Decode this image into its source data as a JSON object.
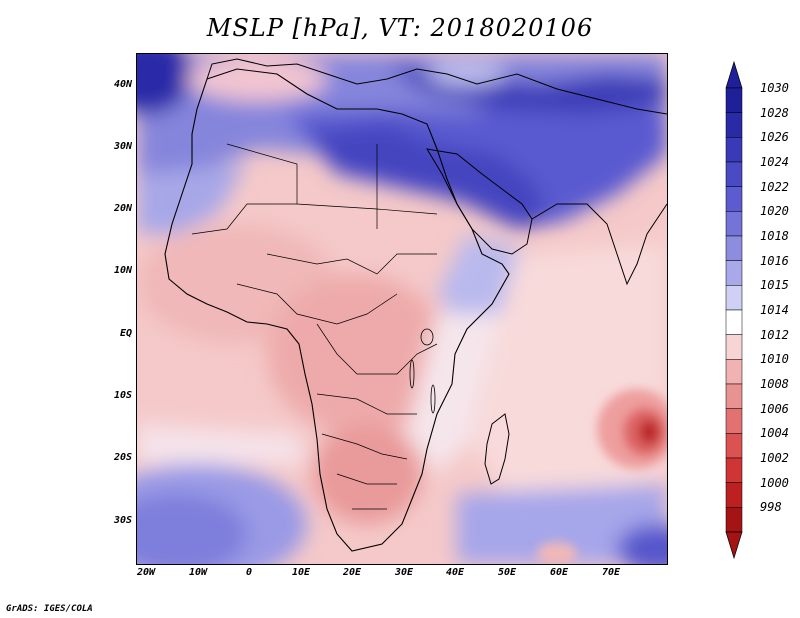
{
  "title": "MSLP [hPa], VT: 2018020106",
  "credit": "GrADS: IGES/COLA",
  "lat_labels": [
    "40N",
    "30N",
    "20N",
    "10N",
    "EQ",
    "10S",
    "20S",
    "30S"
  ],
  "lon_labels": [
    "20W",
    "10W",
    "0",
    "10E",
    "20E",
    "30E",
    "40E",
    "50E",
    "60E",
    "70E"
  ],
  "colorbar": {
    "levels": [
      "1030",
      "1028",
      "1026",
      "1024",
      "1022",
      "1020",
      "1018",
      "1016",
      "1015",
      "1014",
      "1012",
      "1010",
      "1008",
      "1006",
      "1004",
      "1002",
      "1000",
      "998"
    ],
    "colors": [
      "#1f1f9a",
      "#2a2aa8",
      "#3a3ab8",
      "#4a4ac4",
      "#5c5cd0",
      "#7373d8",
      "#8d8de0",
      "#a9a9ea",
      "#d0d0f5",
      "#ffffff",
      "#f7d5d5",
      "#f0b2b2",
      "#e99292",
      "#e27272",
      "#db5252",
      "#cf3535",
      "#bc2020",
      "#a51414"
    ]
  }
}
